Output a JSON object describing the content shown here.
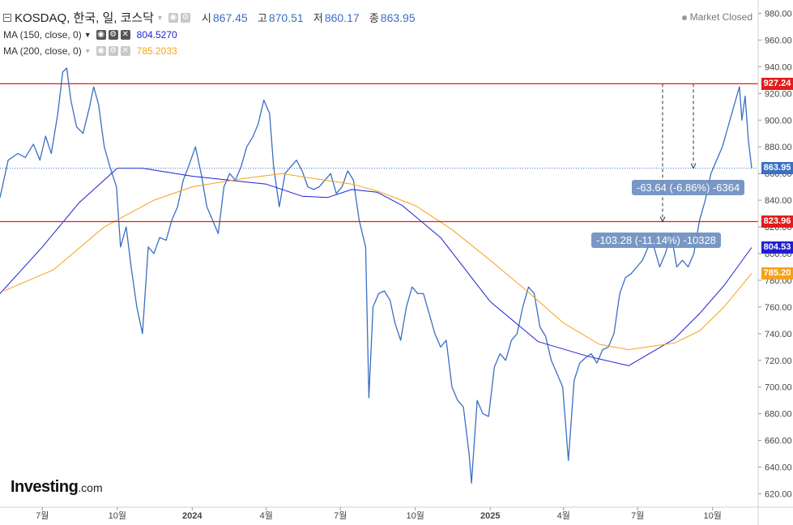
{
  "header": {
    "symbol": "KOSDAQ, 한국, 일, 코스닥",
    "ohlc": [
      {
        "label": "시",
        "value": "867.45"
      },
      {
        "label": "고",
        "value": "870.51"
      },
      {
        "label": "저",
        "value": "860.17"
      },
      {
        "label": "종",
        "value": "863.95"
      }
    ],
    "status": "Market Closed"
  },
  "indicators": {
    "ma150": {
      "label": "MA (150, close, 0)",
      "value": "804.5270",
      "color": "#1f1fd2"
    },
    "ma200": {
      "label": "MA (200, close, 0)",
      "value": "785.2033",
      "color": "#f7a11a"
    }
  },
  "price_labels": [
    {
      "text": "927.24",
      "value": 927.24,
      "bg": "#e31b1b"
    },
    {
      "text": "863.95",
      "value": 863.95,
      "bg": "#3a6fc4"
    },
    {
      "text": "823.96",
      "value": 823.96,
      "bg": "#e31b1b"
    },
    {
      "text": "804.53",
      "value": 804.53,
      "bg": "#1f1fd2"
    },
    {
      "text": "785.20",
      "value": 785.2,
      "bg": "#f7a11a"
    }
  ],
  "measurements": [
    {
      "text": "-63.64 (-6.86%) -6364"
    },
    {
      "text": "-103.28 (-11.14%) -10328"
    }
  ],
  "logo": {
    "main": "Investing",
    "suffix": ".com"
  },
  "colors": {
    "price": "#3a6fc4",
    "hline": "#e31b1b",
    "ma150": "#1f1fd2",
    "ma200": "#f7a11a"
  },
  "chart_data": {
    "type": "line",
    "ylim": [
      610,
      990
    ],
    "y_ticks": [
      620,
      640,
      660,
      680,
      700,
      720,
      740,
      760,
      780,
      800,
      820,
      840,
      860,
      880,
      900,
      920,
      940,
      960,
      980
    ],
    "x_ticks": [
      {
        "label": "7월",
        "date": "2023-07-01",
        "bold": false
      },
      {
        "label": "10월",
        "date": "2023-10-01",
        "bold": false
      },
      {
        "label": "2024",
        "date": "2024-01-01",
        "bold": true
      },
      {
        "label": "4월",
        "date": "2024-04-01",
        "bold": false
      },
      {
        "label": "7월",
        "date": "2024-07-01",
        "bold": false
      },
      {
        "label": "10월",
        "date": "2024-10-01",
        "bold": false
      },
      {
        "label": "2025",
        "date": "2025-01-01",
        "bold": true
      },
      {
        "label": "4월",
        "date": "2025-04-01",
        "bold": false
      },
      {
        "label": "7월",
        "date": "2025-07-01",
        "bold": false
      },
      {
        "label": "10월",
        "date": "2025-10-01",
        "bold": false
      }
    ],
    "horizontal_lines": [
      927.24,
      823.96
    ],
    "last_close_line": 863.95,
    "series": [
      {
        "name": "KOSDAQ",
        "color": "#3a6fc4",
        "points": [
          [
            "2023-05-10",
            842
          ],
          [
            "2023-05-20",
            870
          ],
          [
            "2023-06-01",
            875
          ],
          [
            "2023-06-10",
            872
          ],
          [
            "2023-06-20",
            882
          ],
          [
            "2023-06-28",
            870
          ],
          [
            "2023-07-05",
            888
          ],
          [
            "2023-07-12",
            875
          ],
          [
            "2023-07-20",
            905
          ],
          [
            "2023-07-26",
            936
          ],
          [
            "2023-07-31",
            939
          ],
          [
            "2023-08-05",
            915
          ],
          [
            "2023-08-12",
            895
          ],
          [
            "2023-08-20",
            890
          ],
          [
            "2023-08-28",
            910
          ],
          [
            "2023-09-02",
            925
          ],
          [
            "2023-09-08",
            912
          ],
          [
            "2023-09-15",
            880
          ],
          [
            "2023-09-22",
            865
          ],
          [
            "2023-09-30",
            850
          ],
          [
            "2023-10-05",
            805
          ],
          [
            "2023-10-12",
            820
          ],
          [
            "2023-10-18",
            790
          ],
          [
            "2023-10-25",
            760
          ],
          [
            "2023-11-01",
            740
          ],
          [
            "2023-11-08",
            805
          ],
          [
            "2023-11-15",
            800
          ],
          [
            "2023-11-22",
            812
          ],
          [
            "2023-11-30",
            810
          ],
          [
            "2023-12-07",
            825
          ],
          [
            "2023-12-14",
            835
          ],
          [
            "2023-12-21",
            855
          ],
          [
            "2023-12-28",
            866
          ],
          [
            "2024-01-05",
            880
          ],
          [
            "2024-01-12",
            860
          ],
          [
            "2024-01-19",
            835
          ],
          [
            "2024-01-26",
            825
          ],
          [
            "2024-02-02",
            815
          ],
          [
            "2024-02-09",
            850
          ],
          [
            "2024-02-16",
            860
          ],
          [
            "2024-02-23",
            855
          ],
          [
            "2024-03-01",
            865
          ],
          [
            "2024-03-08",
            880
          ],
          [
            "2024-03-15",
            887
          ],
          [
            "2024-03-22",
            897
          ],
          [
            "2024-03-29",
            915
          ],
          [
            "2024-04-05",
            905
          ],
          [
            "2024-04-10",
            865
          ],
          [
            "2024-04-17",
            835
          ],
          [
            "2024-04-24",
            860
          ],
          [
            "2024-05-01",
            865
          ],
          [
            "2024-05-08",
            870
          ],
          [
            "2024-05-15",
            862
          ],
          [
            "2024-05-22",
            850
          ],
          [
            "2024-05-29",
            848
          ],
          [
            "2024-06-05",
            850
          ],
          [
            "2024-06-12",
            855
          ],
          [
            "2024-06-19",
            860
          ],
          [
            "2024-06-26",
            845
          ],
          [
            "2024-07-03",
            850
          ],
          [
            "2024-07-10",
            862
          ],
          [
            "2024-07-17",
            855
          ],
          [
            "2024-07-24",
            825
          ],
          [
            "2024-08-01",
            805
          ],
          [
            "2024-08-05",
            692
          ],
          [
            "2024-08-10",
            760
          ],
          [
            "2024-08-17",
            770
          ],
          [
            "2024-08-24",
            772
          ],
          [
            "2024-08-31",
            765
          ],
          [
            "2024-09-06",
            748
          ],
          [
            "2024-09-13",
            735
          ],
          [
            "2024-09-20",
            760
          ],
          [
            "2024-09-27",
            775
          ],
          [
            "2024-10-04",
            770
          ],
          [
            "2024-10-11",
            770
          ],
          [
            "2024-10-18",
            755
          ],
          [
            "2024-10-25",
            740
          ],
          [
            "2024-11-01",
            730
          ],
          [
            "2024-11-08",
            735
          ],
          [
            "2024-11-15",
            700
          ],
          [
            "2024-11-22",
            690
          ],
          [
            "2024-11-29",
            685
          ],
          [
            "2024-12-06",
            650
          ],
          [
            "2024-12-09",
            628
          ],
          [
            "2024-12-16",
            690
          ],
          [
            "2024-12-23",
            680
          ],
          [
            "2024-12-30",
            678
          ],
          [
            "2025-01-06",
            715
          ],
          [
            "2025-01-13",
            725
          ],
          [
            "2025-01-20",
            720
          ],
          [
            "2025-01-27",
            735
          ],
          [
            "2025-02-03",
            740
          ],
          [
            "2025-02-10",
            760
          ],
          [
            "2025-02-17",
            775
          ],
          [
            "2025-02-24",
            770
          ],
          [
            "2025-03-03",
            745
          ],
          [
            "2025-03-10",
            738
          ],
          [
            "2025-03-17",
            720
          ],
          [
            "2025-03-24",
            710
          ],
          [
            "2025-03-31",
            700
          ],
          [
            "2025-04-07",
            645
          ],
          [
            "2025-04-14",
            705
          ],
          [
            "2025-04-21",
            718
          ],
          [
            "2025-04-28",
            722
          ],
          [
            "2025-05-05",
            725
          ],
          [
            "2025-05-12",
            718
          ],
          [
            "2025-05-19",
            728
          ],
          [
            "2025-05-26",
            730
          ],
          [
            "2025-06-02",
            740
          ],
          [
            "2025-06-09",
            770
          ],
          [
            "2025-06-16",
            782
          ],
          [
            "2025-06-23",
            785
          ],
          [
            "2025-06-30",
            790
          ],
          [
            "2025-07-07",
            795
          ],
          [
            "2025-07-14",
            805
          ],
          [
            "2025-07-21",
            805
          ],
          [
            "2025-07-28",
            790
          ],
          [
            "2025-08-04",
            800
          ],
          [
            "2025-08-11",
            815
          ],
          [
            "2025-08-18",
            790
          ],
          [
            "2025-08-25",
            795
          ],
          [
            "2025-09-01",
            790
          ],
          [
            "2025-09-08",
            800
          ],
          [
            "2025-09-15",
            825
          ],
          [
            "2025-09-22",
            840
          ],
          [
            "2025-09-29",
            860
          ],
          [
            "2025-10-06",
            870
          ],
          [
            "2025-10-13",
            880
          ],
          [
            "2025-10-20",
            895
          ],
          [
            "2025-10-27",
            910
          ],
          [
            "2025-11-03",
            925
          ],
          [
            "2025-11-06",
            900
          ],
          [
            "2025-11-10",
            918
          ],
          [
            "2025-11-14",
            885
          ],
          [
            "2025-11-18",
            863.95
          ]
        ]
      },
      {
        "name": "MA (150, close, 0)",
        "color": "#1f1fd2",
        "points": [
          [
            "2023-05-10",
            770
          ],
          [
            "2023-07-01",
            805
          ],
          [
            "2023-08-15",
            838
          ],
          [
            "2023-10-01",
            864
          ],
          [
            "2023-11-01",
            864
          ],
          [
            "2024-01-01",
            858
          ],
          [
            "2024-03-01",
            854
          ],
          [
            "2024-04-01",
            852
          ],
          [
            "2024-05-15",
            843
          ],
          [
            "2024-06-15",
            842
          ],
          [
            "2024-07-15",
            848
          ],
          [
            "2024-08-15",
            846
          ],
          [
            "2024-09-15",
            836
          ],
          [
            "2024-11-01",
            812
          ],
          [
            "2025-01-01",
            764
          ],
          [
            "2025-03-01",
            734
          ],
          [
            "2025-05-01",
            723
          ],
          [
            "2025-06-20",
            716
          ],
          [
            "2025-08-15",
            736
          ],
          [
            "2025-09-15",
            755
          ],
          [
            "2025-10-15",
            776
          ],
          [
            "2025-11-18",
            804.53
          ]
        ]
      },
      {
        "name": "MA (200, close, 0)",
        "color": "#f7a11a",
        "points": [
          [
            "2023-05-15",
            772
          ],
          [
            "2023-07-15",
            788
          ],
          [
            "2023-09-15",
            820
          ],
          [
            "2023-11-15",
            840
          ],
          [
            "2024-01-01",
            850
          ],
          [
            "2024-03-01",
            856
          ],
          [
            "2024-04-20",
            860
          ],
          [
            "2024-06-01",
            856
          ],
          [
            "2024-07-15",
            852
          ],
          [
            "2024-08-15",
            847
          ],
          [
            "2024-10-01",
            836
          ],
          [
            "2024-11-15",
            818
          ],
          [
            "2025-01-01",
            795
          ],
          [
            "2025-02-15",
            772
          ],
          [
            "2025-04-01",
            748
          ],
          [
            "2025-05-15",
            732
          ],
          [
            "2025-06-20",
            728
          ],
          [
            "2025-08-15",
            733
          ],
          [
            "2025-09-15",
            742
          ],
          [
            "2025-10-15",
            760
          ],
          [
            "2025-11-18",
            785.2
          ]
        ]
      }
    ]
  }
}
